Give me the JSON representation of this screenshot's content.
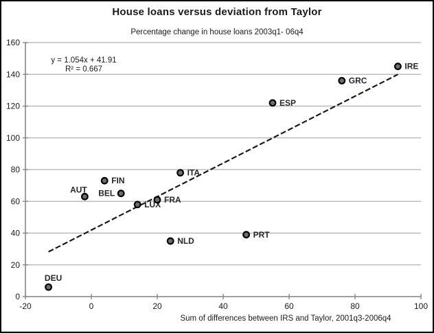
{
  "chart_data": {
    "type": "scatter",
    "title": "House loans versus deviation from Taylor",
    "subtitle": "Percentage change in house loans 2003q1- 06q4",
    "xlabel": "Sum of differences between IRS and Taylor, 2001q3-2006q4",
    "ylabel": "",
    "xlim": [
      -20,
      100
    ],
    "ylim": [
      0,
      160
    ],
    "x_ticks": [
      -20,
      0,
      20,
      40,
      60,
      80,
      100
    ],
    "y_ticks": [
      0,
      20,
      40,
      60,
      80,
      100,
      120,
      140,
      160
    ],
    "grid": "horizontal-only",
    "legend": "none",
    "points": [
      {
        "label": "DEU",
        "x": -13,
        "y": 6,
        "label_position": "above"
      },
      {
        "label": "AUT",
        "x": -2,
        "y": 63,
        "label_position": "above-left"
      },
      {
        "label": "FIN",
        "x": 4,
        "y": 73,
        "label_position": "right"
      },
      {
        "label": "BEL",
        "x": 9,
        "y": 65,
        "label_position": "left"
      },
      {
        "label": "LUX",
        "x": 14,
        "y": 58,
        "label_position": "right"
      },
      {
        "label": "FRA",
        "x": 20,
        "y": 61,
        "label_position": "right"
      },
      {
        "label": "NLD",
        "x": 24,
        "y": 35,
        "label_position": "right"
      },
      {
        "label": "ITA",
        "x": 27,
        "y": 78,
        "label_position": "right"
      },
      {
        "label": "PRT",
        "x": 47,
        "y": 39,
        "label_position": "right"
      },
      {
        "label": "ESP",
        "x": 55,
        "y": 122,
        "label_position": "right"
      },
      {
        "label": "GRC",
        "x": 76,
        "y": 136,
        "label_position": "right"
      },
      {
        "label": "IRE",
        "x": 93,
        "y": 145,
        "label_position": "right"
      }
    ],
    "trendline": {
      "slope": 1.054,
      "intercept": 41.91,
      "x_start": -13,
      "x_end": 93,
      "equation": "y = 1.054x + 41.91",
      "r_squared": "R² = 0.667",
      "style": "dashed"
    },
    "colors": {
      "point_fill": "#6e6e6e",
      "point_stroke": "#000000",
      "trendline": "#1a1a1a",
      "gridline": "#b0b0b0",
      "axis": "#808080",
      "text": "#1a1a1a",
      "point_label": "#26262e",
      "background": "#ffffff",
      "border": "#000000"
    }
  }
}
